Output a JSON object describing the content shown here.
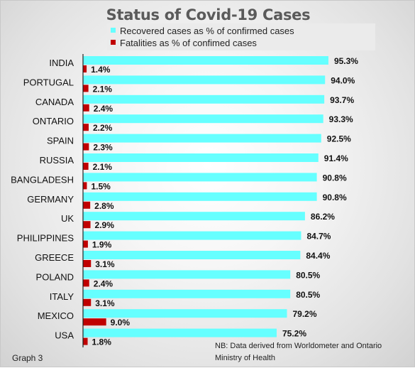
{
  "chart_data": {
    "type": "bar",
    "orientation": "horizontal",
    "title": "Status of Covid-19 Cases",
    "categories": [
      "INDIA",
      "PORTUGAL",
      "CANADA",
      "ONTARIO",
      "SPAIN",
      "RUSSIA",
      "BANGLADESH",
      "GERMANY",
      "UK",
      "PHILIPPINES",
      "GREECE",
      "POLAND",
      "ITALY",
      "MEXICO",
      "USA"
    ],
    "series": [
      {
        "name": "Recovered cases as % of confirmed cases",
        "color": "#66ffff",
        "values": [
          95.3,
          94.0,
          93.7,
          93.3,
          92.5,
          91.4,
          90.8,
          90.8,
          86.2,
          84.7,
          84.4,
          80.5,
          80.5,
          79.2,
          75.2
        ],
        "labels": [
          "95.3%",
          "94.0%",
          "93.7%",
          "93.3%",
          "92.5%",
          "91.4%",
          "90.8%",
          "90.8%",
          "86.2%",
          "84.7%",
          "84.4%",
          "80.5%",
          "80.5%",
          "79.2%",
          "75.2%"
        ]
      },
      {
        "name": "Fatalities as % of confimed cases",
        "color": "#c00000",
        "values": [
          1.4,
          2.1,
          2.4,
          2.2,
          2.3,
          2.1,
          1.5,
          2.8,
          2.9,
          1.9,
          3.1,
          2.4,
          3.1,
          9.0,
          1.8
        ],
        "labels": [
          "1.4%",
          "2.1%",
          "2.4%",
          "2.2%",
          "2.3%",
          "2.1%",
          "1.5%",
          "2.8%",
          "2.9%",
          "1.9%",
          "3.1%",
          "2.4%",
          "3.1%",
          "9.0%",
          "1.8%"
        ]
      }
    ],
    "grid": false,
    "legend_position": "top"
  },
  "footer": {
    "graph_label": "Graph 3",
    "note": "NB: Data derived from Worldometer and Ontario Ministry of Health"
  }
}
